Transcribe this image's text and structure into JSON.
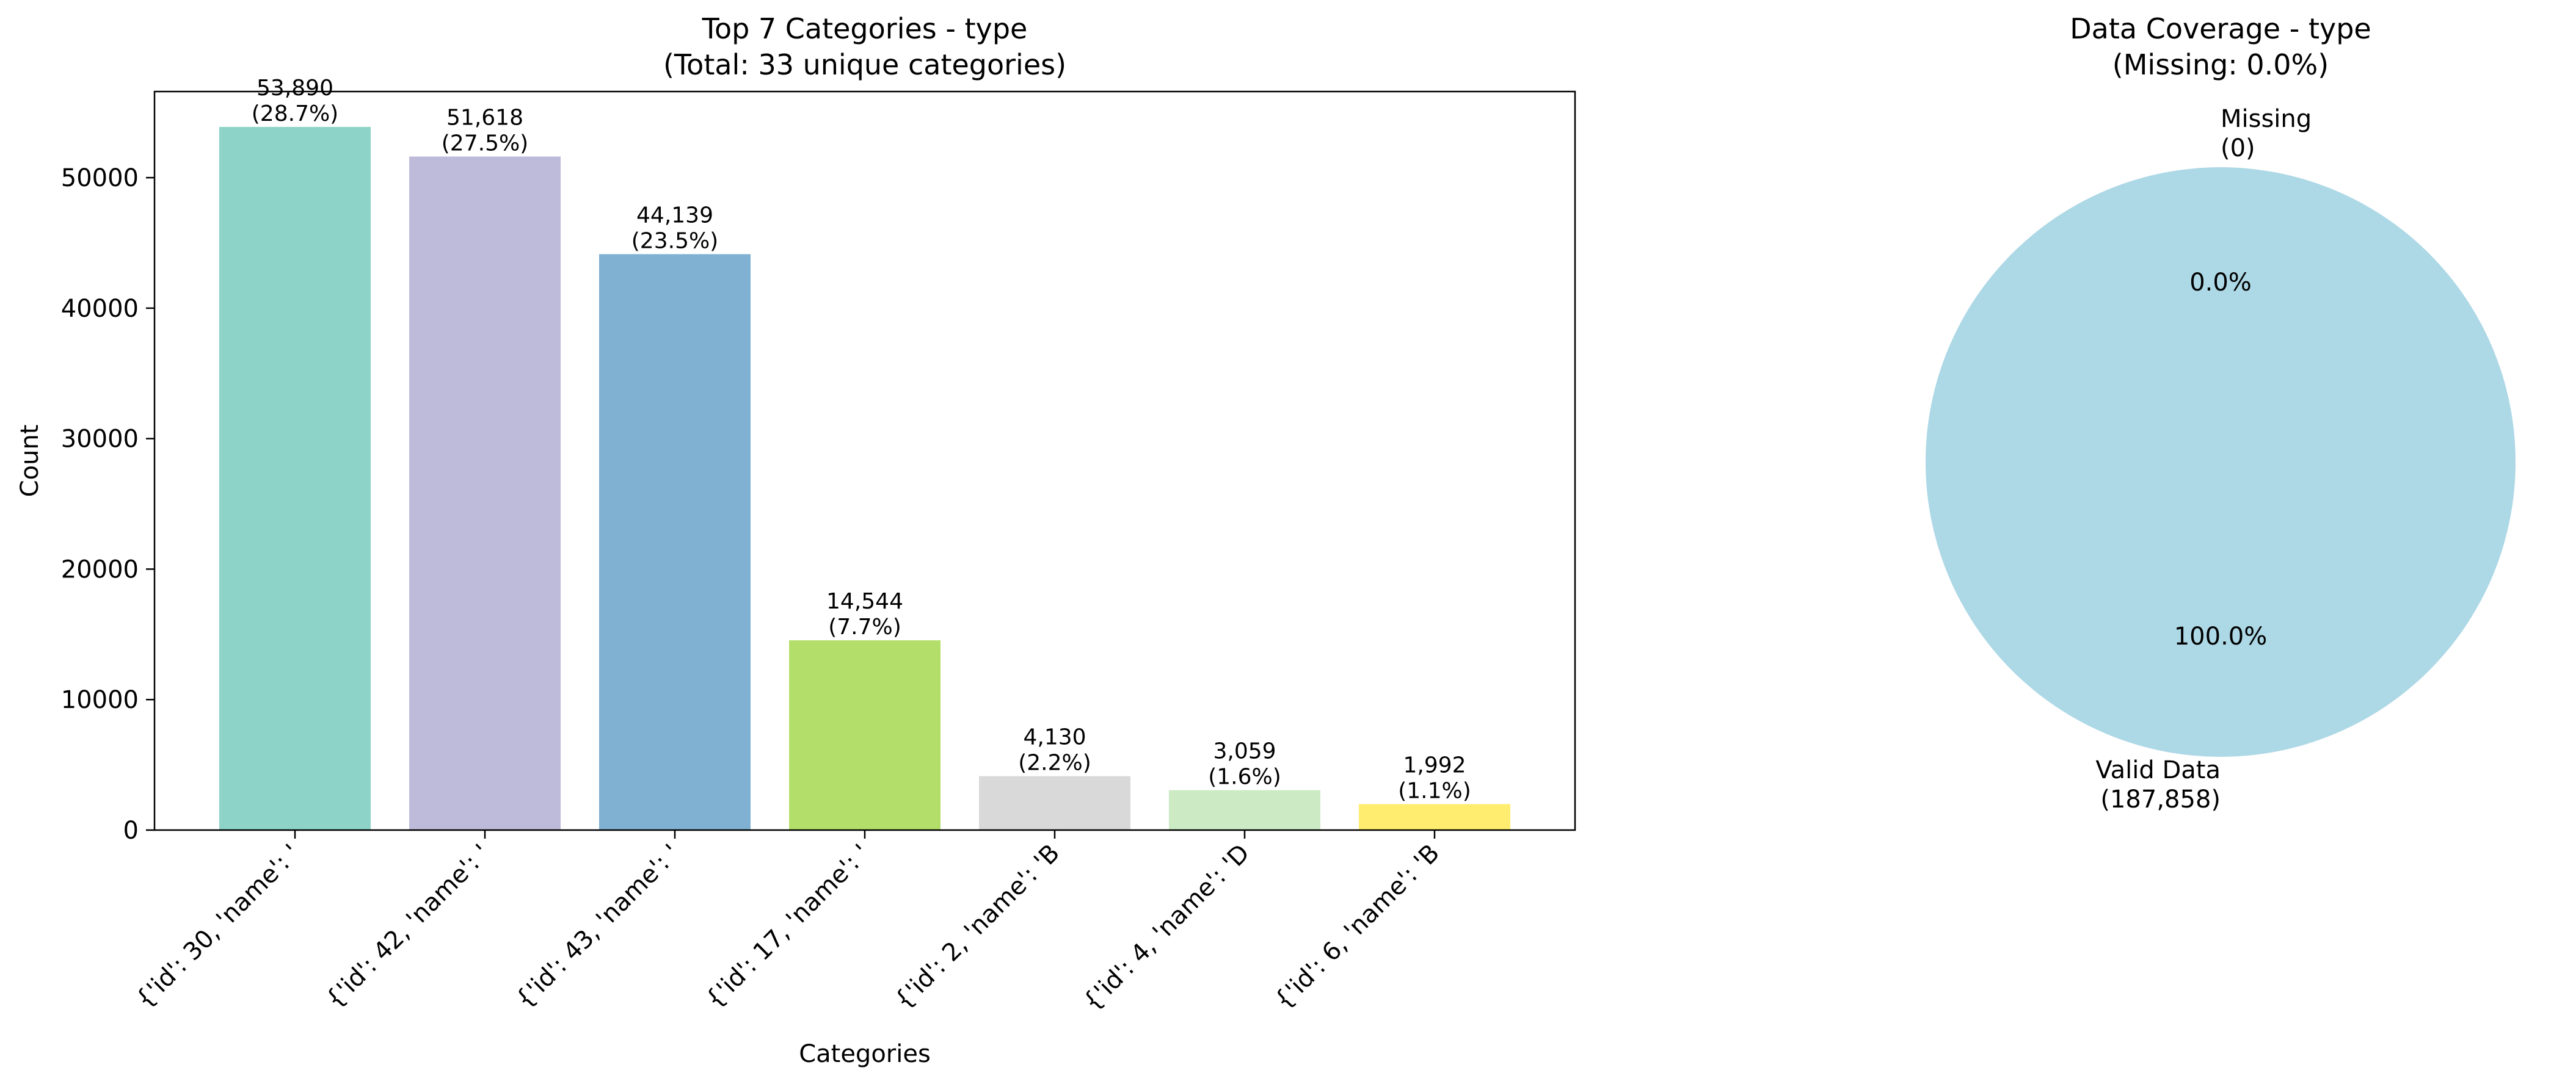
{
  "chart_data": [
    {
      "type": "bar",
      "title": "Top 7 Categories - type",
      "subtitle": "(Total: 33 unique categories)",
      "xlabel": "Categories",
      "ylabel": "Count",
      "ylim": [
        0,
        56600
      ],
      "yticks": [
        0,
        10000,
        20000,
        30000,
        40000,
        50000
      ],
      "ytick_labels": [
        "0",
        "10000",
        "20000",
        "30000",
        "40000",
        "50000"
      ],
      "categories": [
        "{'id': 30, 'name': '",
        "{'id': 42, 'name': '",
        "{'id': 43, 'name': '",
        "{'id': 17, 'name': '",
        "{'id': 2, 'name': 'B",
        "{'id': 4, 'name': 'D",
        "{'id': 6, 'name': 'B"
      ],
      "values": [
        53890,
        51618,
        44139,
        14544,
        4130,
        3059,
        1992
      ],
      "value_labels": [
        "53,890",
        "51,618",
        "44,139",
        "14,544",
        "4,130",
        "3,059",
        "1,992"
      ],
      "percent_labels": [
        "(28.7%)",
        "(27.5%)",
        "(23.5%)",
        "(7.7%)",
        "(2.2%)",
        "(1.6%)",
        "(1.1%)"
      ],
      "colors": [
        "#8dd3c7",
        "#bebada",
        "#80b1d3",
        "#b3de69",
        "#d9d9d9",
        "#ccebc5",
        "#ffed6f"
      ],
      "grid": false
    },
    {
      "type": "pie",
      "title": "Data Coverage - type",
      "subtitle": "(Missing: 0.0%)",
      "slices": [
        {
          "name": "Valid Data",
          "count_label": "(187,858)",
          "value": 187858,
          "percent_label": "100.0%",
          "color": "#add8e6"
        },
        {
          "name": "Missing",
          "count_label": "(0)",
          "value": 0,
          "percent_label": "0.0%",
          "color": "#f08080"
        }
      ]
    }
  ]
}
